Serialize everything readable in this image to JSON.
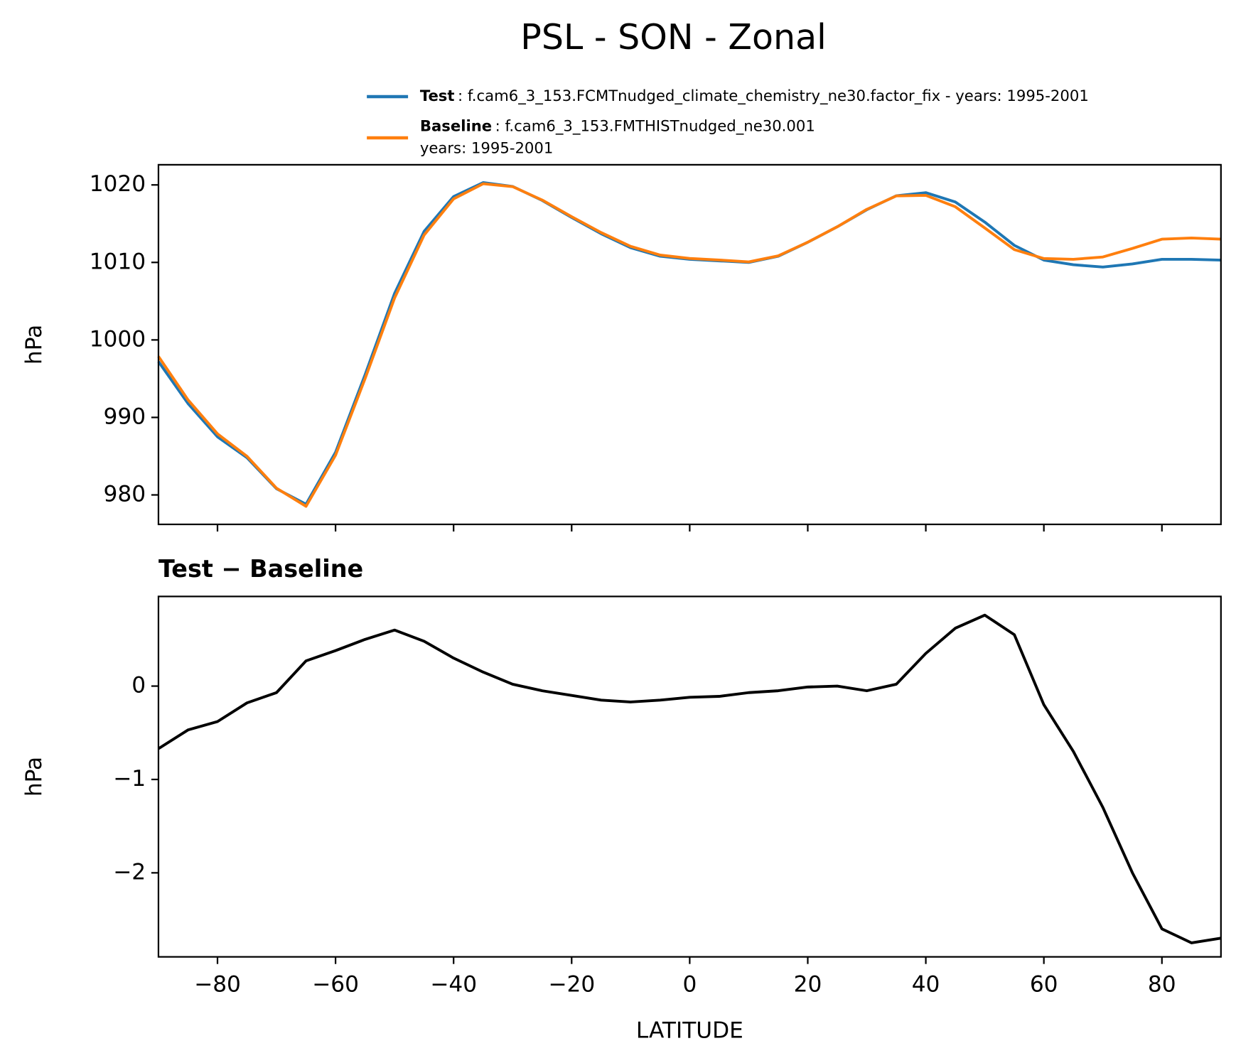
{
  "chart_data": [
    {
      "type": "line",
      "title": "PSL - SON - Zonal",
      "ylabel": "hPa",
      "x": [
        -90,
        -85,
        -80,
        -75,
        -70,
        -65,
        -60,
        -55,
        -50,
        -45,
        -40,
        -35,
        -30,
        -25,
        -20,
        -15,
        -10,
        -5,
        0,
        5,
        10,
        15,
        20,
        25,
        30,
        35,
        40,
        45,
        50,
        55,
        60,
        65,
        70,
        75,
        80,
        85,
        90
      ],
      "series": [
        {
          "name": "Test",
          "description": [
            ": f.cam6_3_153.FCMTnudged_climate_chemistry_ne30.factor_fix - years: 1995-2001"
          ],
          "color": "#1f77b4",
          "values": [
            997.2,
            991.8,
            987.5,
            984.8,
            980.8,
            978.8,
            985.5,
            995.5,
            1006,
            1014,
            1018.5,
            1020.3,
            1019.8,
            1018,
            1015.8,
            1013.7,
            1011.9,
            1010.8,
            1010.4,
            1010.2,
            1010,
            1010.8,
            1012.6,
            1014.6,
            1016.8,
            1018.6,
            1019,
            1017.8,
            1015.2,
            1012.2,
            1010.3,
            1009.7,
            1009.4,
            1009.8,
            1010.4,
            1010.4,
            1010.3
          ]
        },
        {
          "name": "Baseline",
          "description": [
            ": f.cam6_3_153.FMTHISTnudged_ne30.001",
            "years: 1995-2001"
          ],
          "color": "#ff7f0e",
          "values": [
            997.87,
            992.27,
            987.88,
            984.98,
            980.87,
            978.53,
            985.12,
            995.0,
            1005.4,
            1013.52,
            1018.2,
            1020.15,
            1019.78,
            1018.05,
            1015.9,
            1013.85,
            1012.07,
            1010.95,
            1010.52,
            1010.31,
            1010.07,
            1010.85,
            1012.61,
            1014.6,
            1016.85,
            1018.58,
            1018.65,
            1017.18,
            1014.44,
            1011.65,
            1010.5,
            1010.4,
            1010.7,
            1011.8,
            1013.0,
            1013.15,
            1013.0
          ]
        }
      ],
      "xlim": [
        -90,
        90
      ],
      "xticks": [
        -80,
        -60,
        -40,
        -20,
        0,
        20,
        40,
        60,
        80
      ],
      "ylim": [
        976.2,
        1022.6
      ],
      "yticks": [
        980,
        990,
        1000,
        1010,
        1020
      ]
    },
    {
      "type": "line",
      "title": "Test − Baseline",
      "xlabel": "LATITUDE",
      "ylabel": "hPa",
      "x": [
        -90,
        -85,
        -80,
        -75,
        -70,
        -65,
        -60,
        -55,
        -50,
        -45,
        -40,
        -35,
        -30,
        -25,
        -20,
        -15,
        -10,
        -5,
        0,
        5,
        10,
        15,
        20,
        25,
        30,
        35,
        40,
        45,
        50,
        55,
        60,
        65,
        70,
        75,
        80,
        85,
        90
      ],
      "series": [
        {
          "color": "#000000",
          "values": [
            -0.67,
            -0.47,
            -0.38,
            -0.18,
            -0.07,
            0.27,
            0.38,
            0.5,
            0.6,
            0.48,
            0.3,
            0.15,
            0.02,
            -0.05,
            -0.1,
            -0.15,
            -0.17,
            -0.15,
            -0.12,
            -0.11,
            -0.07,
            -0.05,
            -0.01,
            0,
            -0.05,
            0.02,
            0.35,
            0.62,
            0.76,
            0.55,
            -0.2,
            -0.7,
            -1.3,
            -2.0,
            -2.6,
            -2.75,
            -2.7
          ]
        }
      ],
      "xlim": [
        -90,
        90
      ],
      "xticks": [
        {
          "value": -80,
          "label": "−80"
        },
        {
          "value": -60,
          "label": "−60"
        },
        {
          "value": -40,
          "label": "−40"
        },
        {
          "value": -20,
          "label": "−20"
        },
        0,
        20,
        40,
        60,
        80
      ],
      "ylim": [
        -2.9,
        0.96
      ],
      "yticks": [
        {
          "value": -2,
          "label": "−2"
        },
        {
          "value": -1,
          "label": "−1"
        },
        0
      ]
    }
  ]
}
